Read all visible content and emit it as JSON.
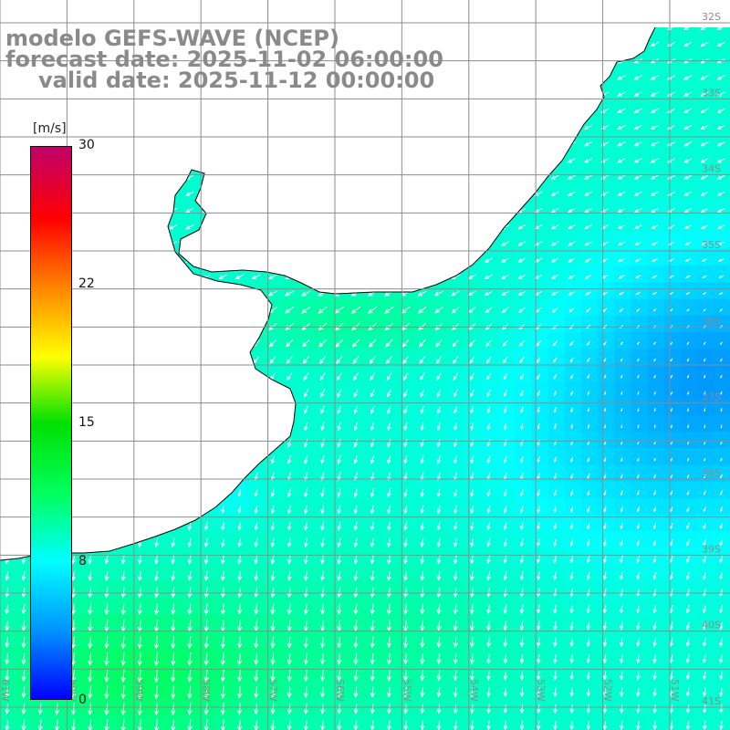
{
  "title": {
    "line1": "modelo GEFS-WAVE (NCEP)",
    "line2": "forecast date: 2025-11-02 06:00:00",
    "line3": "valid date: 2025-11-12 00:00:00"
  },
  "colorbar": {
    "unit": "[m/s]",
    "ticks": [
      "30",
      "22",
      "15",
      "8",
      "0"
    ],
    "tick_values": [
      30,
      22,
      15,
      8,
      0
    ],
    "min": 0,
    "max": 30,
    "colors": [
      "#0000ff",
      "#0090ff",
      "#00ffff",
      "#00ff60",
      "#00e000",
      "#ffff00",
      "#ff8000",
      "#ff0000",
      "#c0006a"
    ]
  },
  "map": {
    "lon_labels": [
      "61W",
      "60W",
      "59W",
      "58W",
      "57W",
      "56W",
      "55W",
      "54W",
      "53W",
      "52W",
      "51W"
    ],
    "lat_labels": [
      "32S",
      "33S",
      "34S",
      "35S",
      "36S",
      "37S",
      "38S",
      "39S",
      "40S",
      "41S"
    ],
    "lon_range": [
      -61.0,
      -50.1
    ],
    "lat_range": [
      -41.3,
      -31.7
    ],
    "colors": {
      "land": "#ffffff",
      "coast": "#000000",
      "grid": "#8c8c8c",
      "arrows": "#ffffff",
      "title": "#8a8a8a"
    },
    "field": {
      "quantity": "wind speed",
      "unit": "m/s",
      "range": [
        5,
        13
      ]
    }
  }
}
